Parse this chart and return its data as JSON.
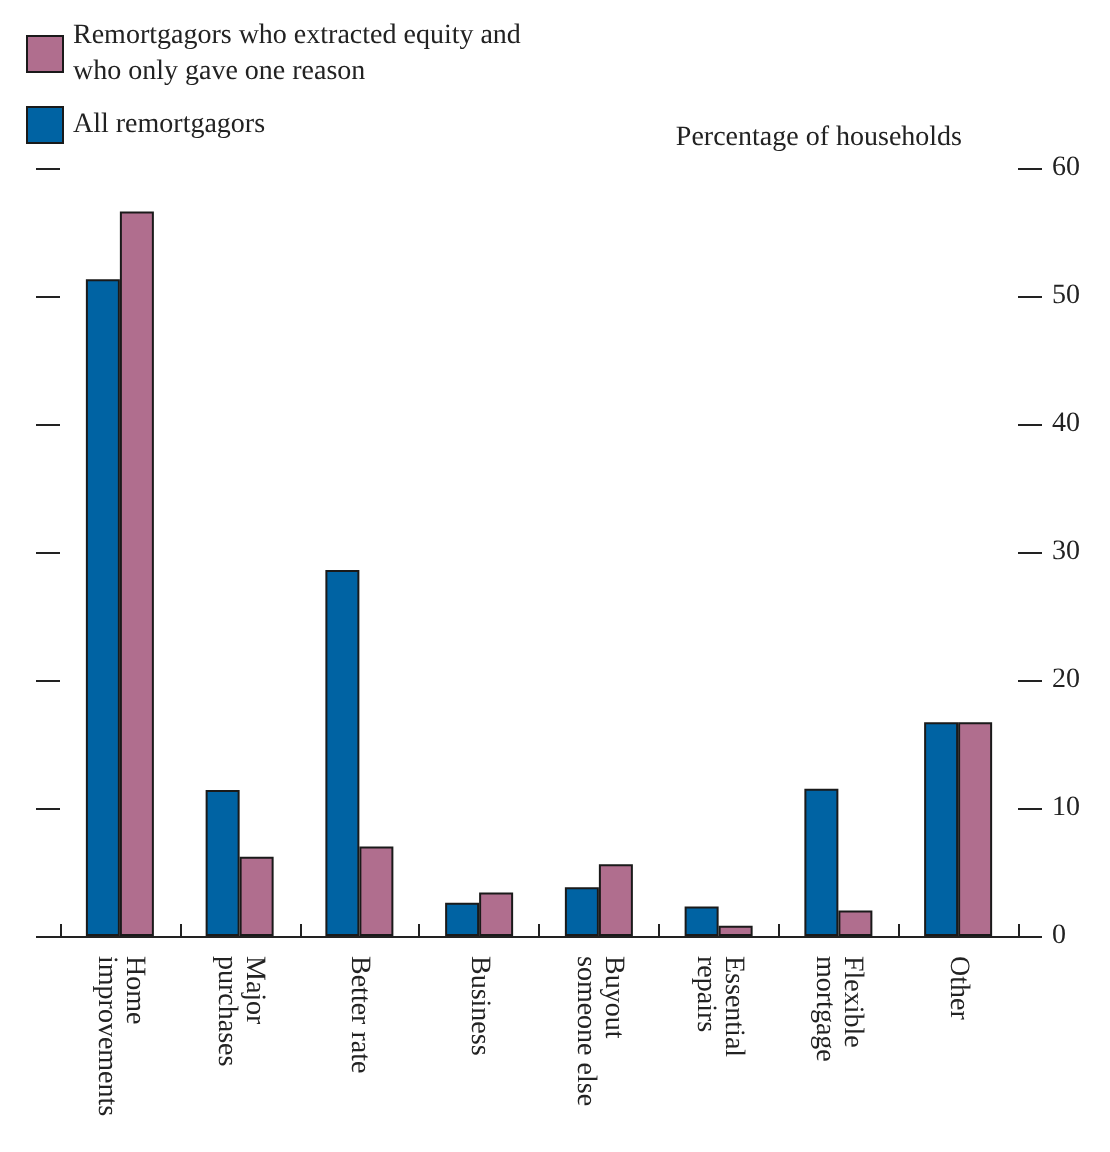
{
  "chart_data": {
    "type": "bar",
    "ylabel": "Percentage of households",
    "categories": [
      "Home improvements",
      "Major purchases",
      "Better rate",
      "Business",
      "Buyout someone else",
      "Essential repairs",
      "Flexible mortgage",
      "Other"
    ],
    "series": [
      {
        "name": "All remortgagors",
        "color": "#0063a3",
        "values": [
          51.3,
          11.4,
          28.6,
          2.6,
          3.8,
          2.3,
          11.5,
          16.7
        ]
      },
      {
        "name": "Remortgagors who extracted equity and who only gave one reason",
        "color": "#b06e8e",
        "values": [
          56.6,
          6.2,
          7.0,
          3.4,
          5.6,
          0.8,
          2.0,
          16.7
        ]
      }
    ],
    "ylim": [
      0,
      60
    ],
    "yticks": [
      0,
      10,
      20,
      30,
      40,
      50,
      60
    ],
    "grid": false,
    "legend": "top left"
  }
}
